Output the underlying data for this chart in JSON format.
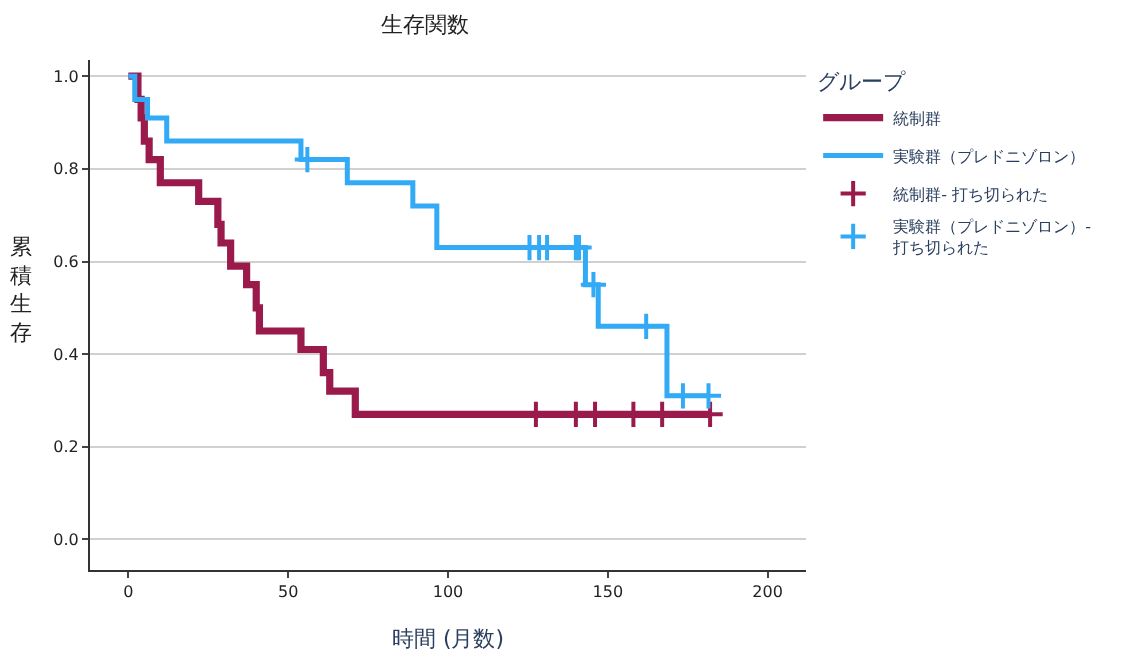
{
  "chart_data": {
    "type": "step",
    "title": "生存関数",
    "xlabel": "時間 (月数)",
    "ylabel": "累積生存",
    "legend_title": "グループ",
    "xlim": [
      -12,
      212
    ],
    "xticks": [
      0,
      50,
      100,
      150,
      200
    ],
    "ylim": [
      -0.066,
      1.035
    ],
    "yticks": [
      {
        "value": 0,
        "label": "0.0"
      },
      {
        "value": 0.2,
        "label": "0.2"
      },
      {
        "value": 0.4,
        "label": "0.4"
      },
      {
        "value": 0.6,
        "label": "0.6"
      },
      {
        "value": 0.8,
        "label": "0.8"
      },
      {
        "value": 1,
        "label": "1.0"
      }
    ],
    "grid": "y",
    "legend": "right",
    "line_style": "solid",
    "series": [
      {
        "name": "統制群",
        "marker": "none",
        "color": "#9b1a4c",
        "x": [
          0,
          3,
          4,
          5,
          6.5,
          10,
          22,
          28,
          29,
          32,
          37,
          40,
          41,
          54,
          61,
          63,
          71,
          182
        ],
        "values": [
          1,
          0.95,
          0.91,
          0.86,
          0.82,
          0.77,
          0.73,
          0.68,
          0.64,
          0.59,
          0.55,
          0.5,
          0.45,
          0.41,
          0.36,
          0.32,
          0.27,
          0.27
        ]
      },
      {
        "name": "実験群（プレドニゾロン）",
        "marker": "none",
        "color": "#33aaf5",
        "x": [
          0,
          2,
          6,
          12,
          54,
          68.5,
          89,
          96.5,
          143,
          147,
          168.5,
          181.5
        ],
        "values": [
          1,
          0.95,
          0.91,
          0.86,
          0.82,
          0.77,
          0.72,
          0.63,
          0.55,
          0.46,
          0.31,
          0.31
        ]
      },
      {
        "name": "統制群- 打ち切られた",
        "type": "scatter",
        "marker": "cross",
        "color": "#9b1a4c",
        "x": [
          127.5,
          140,
          146,
          158,
          167,
          182
        ],
        "values": [
          0.27,
          0.27,
          0.27,
          0.27,
          0.27,
          0.27
        ]
      },
      {
        "name": "実験群（プレドニゾロン）- 打ち切られた",
        "type": "scatter",
        "marker": "cross",
        "color": "#33aaf5",
        "x": [
          56,
          125.5,
          128.5,
          131,
          140,
          141,
          145.5,
          162,
          173.5,
          181.5
        ],
        "values": [
          0.82,
          0.63,
          0.63,
          0.63,
          0.63,
          0.63,
          0.55,
          0.46,
          0.31,
          0.31
        ]
      }
    ]
  }
}
